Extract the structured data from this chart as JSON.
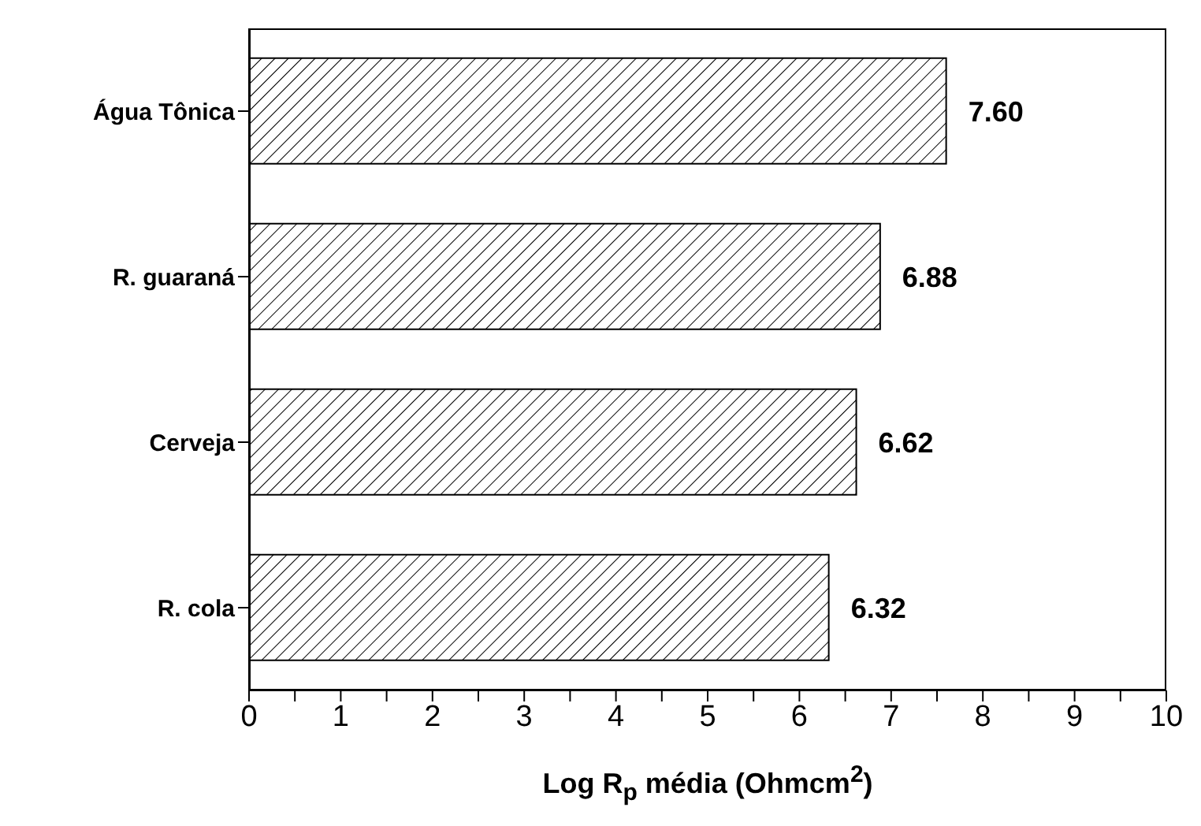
{
  "chart_data": {
    "type": "bar",
    "orientation": "horizontal",
    "categories": [
      "Água Tônica",
      "R. guaraná",
      "Cerveja",
      "R. cola"
    ],
    "values": [
      7.6,
      6.88,
      6.62,
      6.32
    ],
    "value_labels": [
      "7.60",
      "6.88",
      "6.62",
      "6.32"
    ],
    "color": "#000000",
    "xlim": [
      0,
      10
    ],
    "xticks": [
      0,
      {
        "value": 0.5,
        "label": null
      },
      1,
      {
        "value": 1.5,
        "label": null
      },
      2,
      {
        "value": 2.5,
        "label": null
      },
      3,
      {
        "value": 3.5,
        "label": null
      },
      4,
      {
        "value": 4.5,
        "label": null
      },
      5,
      {
        "value": 5.5,
        "label": null
      },
      6,
      {
        "value": 6.5,
        "label": null
      },
      7,
      {
        "value": 7.5,
        "label": null
      },
      8,
      {
        "value": 8.5,
        "label": null
      },
      9,
      {
        "value": 9.5,
        "label": null
      },
      10
    ],
    "xlabel": "Log R$_{p}$ média (Ohmcm$^{2}$)"
  }
}
